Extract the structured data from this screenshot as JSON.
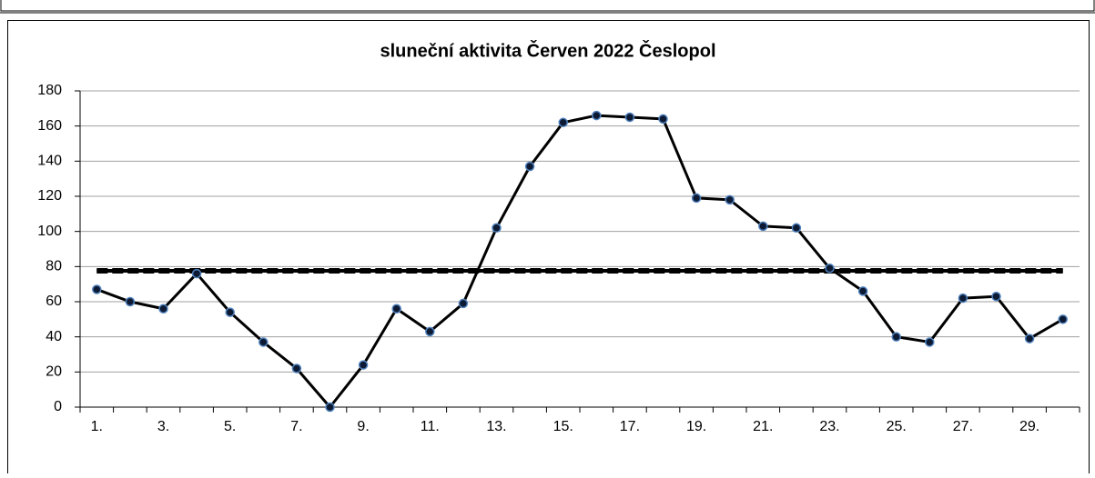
{
  "chart_data": {
    "type": "line",
    "title": "sluneční aktivita Červen 2022 Česlopol",
    "categories": [
      "1.",
      null,
      "3.",
      null,
      "5.",
      null,
      "7.",
      null,
      "9.",
      null,
      "11.",
      null,
      "13.",
      null,
      "15.",
      null,
      "17.",
      null,
      "19.",
      null,
      "21.",
      null,
      "23.",
      null,
      "25.",
      null,
      "27.",
      null,
      "29.",
      null
    ],
    "series": [
      {
        "color": "#000000",
        "marker_color": "#0d1a33",
        "marker_edge": "#4f81bd",
        "values": [
          67,
          60,
          56,
          76,
          54,
          37,
          22,
          0,
          24,
          56,
          43,
          59,
          102,
          137,
          162,
          166,
          165,
          164,
          119,
          118,
          103,
          102,
          79,
          66,
          40,
          37,
          62,
          63,
          39,
          50
        ]
      },
      {
        "color": "#000000",
        "dashed": false,
        "values": [
          77.6,
          77.6,
          77.6,
          77.6,
          77.6,
          77.6,
          77.6,
          77.6,
          77.6,
          77.6,
          77.6,
          77.6,
          77.6,
          77.6,
          77.6,
          77.6,
          77.6,
          77.6,
          77.6,
          77.6,
          77.6,
          77.6,
          77.6,
          77.6,
          77.6,
          77.6,
          77.6,
          77.6,
          77.6,
          77.6
        ]
      },
      {
        "color": "#000000",
        "dashed": true,
        "values": [
          77.6,
          77.6,
          77.6,
          77.6,
          77.6,
          77.6,
          77.6,
          77.6,
          77.6,
          77.6,
          77.6,
          77.6,
          77.6,
          77.6,
          77.6,
          77.6,
          77.6,
          77.6,
          77.6,
          77.6,
          77.6,
          77.6,
          77.6,
          77.6,
          77.6,
          77.6,
          77.6,
          77.6,
          77.6,
          77.6
        ]
      }
    ],
    "ylim": [
      0,
      180
    ],
    "yticks": [
      0,
      20,
      40,
      60,
      80,
      100,
      120,
      140,
      160,
      180
    ],
    "grid": true
  }
}
